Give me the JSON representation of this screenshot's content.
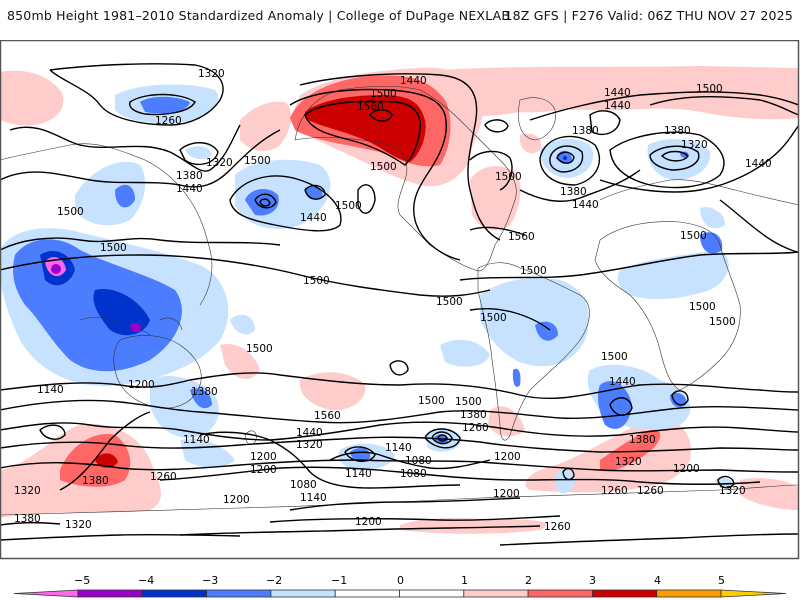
{
  "header": {
    "title_left": "850mb Height 1981–2010 Standardized Anomaly | College of DuPage NEXLAB",
    "title_right": "18Z GFS | F276 Valid: 06Z THU NOV 27 2025"
  },
  "map": {
    "field": "850mb geopotential height (dam contours) with standardized anomaly shading",
    "contour_labels": [
      {
        "id": "c1",
        "text": "1320"
      },
      {
        "id": "c2",
        "text": "1260"
      },
      {
        "id": "c3",
        "text": "1320"
      },
      {
        "id": "c4",
        "text": "1380"
      },
      {
        "id": "c5",
        "text": "1440"
      },
      {
        "id": "c6",
        "text": "1500"
      },
      {
        "id": "c7",
        "text": "1500"
      },
      {
        "id": "c8",
        "text": "1500"
      },
      {
        "id": "c9",
        "text": "1440"
      },
      {
        "id": "c10",
        "text": "1500"
      },
      {
        "id": "c11",
        "text": "1440"
      },
      {
        "id": "c12",
        "text": "1500"
      },
      {
        "id": "c13",
        "text": "1560"
      },
      {
        "id": "c14",
        "text": "1500"
      },
      {
        "id": "c15",
        "text": "1500"
      },
      {
        "id": "c16",
        "text": "1560"
      },
      {
        "id": "c17",
        "text": "1440"
      },
      {
        "id": "c18",
        "text": "1440"
      },
      {
        "id": "c19",
        "text": "1500"
      },
      {
        "id": "c20",
        "text": "1380"
      },
      {
        "id": "c21",
        "text": "1380"
      },
      {
        "id": "c22",
        "text": "1440"
      },
      {
        "id": "c23",
        "text": "1380"
      },
      {
        "id": "c24",
        "text": "1320"
      },
      {
        "id": "c25",
        "text": "1440"
      },
      {
        "id": "c26",
        "text": "1500"
      },
      {
        "id": "c27",
        "text": "1500"
      },
      {
        "id": "c28",
        "text": "1500"
      },
      {
        "id": "c29",
        "text": "1500"
      },
      {
        "id": "c30",
        "text": "1500"
      },
      {
        "id": "c31",
        "text": "1500"
      },
      {
        "id": "c32",
        "text": "1500"
      },
      {
        "id": "c33",
        "text": "1500"
      },
      {
        "id": "c34",
        "text": "1440"
      },
      {
        "id": "c35",
        "text": "1380"
      },
      {
        "id": "c36",
        "text": "1500"
      },
      {
        "id": "c37",
        "text": "1560"
      },
      {
        "id": "c38",
        "text": "1440"
      },
      {
        "id": "c39",
        "text": "1320"
      },
      {
        "id": "c40",
        "text": "1200"
      },
      {
        "id": "c41",
        "text": "1140"
      },
      {
        "id": "c42",
        "text": "1080"
      },
      {
        "id": "c43",
        "text": "1500"
      },
      {
        "id": "c44",
        "text": "1380"
      },
      {
        "id": "c45",
        "text": "1260"
      },
      {
        "id": "c46",
        "text": "1140"
      },
      {
        "id": "c47",
        "text": "1080"
      },
      {
        "id": "c48",
        "text": "1200"
      },
      {
        "id": "c49",
        "text": "1080"
      },
      {
        "id": "c50",
        "text": "1140"
      },
      {
        "id": "c51",
        "text": "1200"
      },
      {
        "id": "c52",
        "text": "1200"
      },
      {
        "id": "c53",
        "text": "1200"
      },
      {
        "id": "c54",
        "text": "1380"
      },
      {
        "id": "c55",
        "text": "1320"
      },
      {
        "id": "c56",
        "text": "1260"
      },
      {
        "id": "c57",
        "text": "1260"
      },
      {
        "id": "c58",
        "text": "1200"
      },
      {
        "id": "c59",
        "text": "1320"
      },
      {
        "id": "c60",
        "text": "1260"
      },
      {
        "id": "c61",
        "text": "1320"
      },
      {
        "id": "c62",
        "text": "1380"
      },
      {
        "id": "c63",
        "text": "1320"
      },
      {
        "id": "c64",
        "text": "1380"
      },
      {
        "id": "c65",
        "text": "1260"
      },
      {
        "id": "c66",
        "text": "1140"
      },
      {
        "id": "c67",
        "text": "1200"
      },
      {
        "id": "c68",
        "text": "1140"
      },
      {
        "id": "c69",
        "text": "1500"
      },
      {
        "id": "c70",
        "text": "1200"
      }
    ]
  },
  "colorbar": {
    "ticks": [
      "−5",
      "−4",
      "−3",
      "−2",
      "−1",
      "0",
      "1",
      "2",
      "3",
      "4",
      "5"
    ],
    "colors": {
      "lt_neg5": "#ff66ee",
      "neg5_neg4": "#9900cc",
      "neg4_neg3": "#0033cc",
      "neg3_neg2": "#4d7dff",
      "neg2_neg1": "#c6e2ff",
      "neg1_0": "#ffffff",
      "0_1": "#ffffff",
      "1_2": "#ffcccc",
      "2_3": "#ff6666",
      "3_4": "#cc0000",
      "4_5": "#ff9900",
      "gt_5": "#ffcc00"
    }
  }
}
